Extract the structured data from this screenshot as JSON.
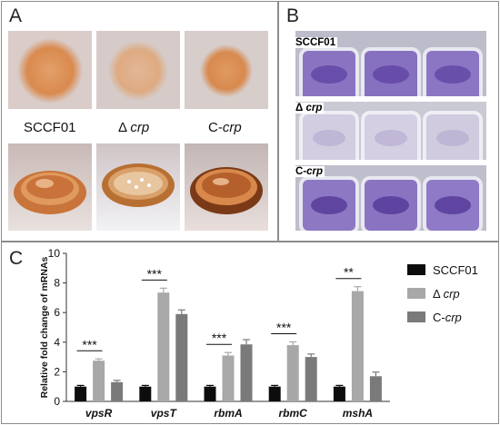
{
  "panel_a": {
    "label": "A",
    "captions": [
      {
        "pre": "SCCF01",
        "em": ""
      },
      {
        "pre": "Δ ",
        "em": "crp"
      },
      {
        "pre": "C-",
        "em": "crp"
      }
    ]
  },
  "panel_b": {
    "label": "B",
    "rows": [
      {
        "pre": "SCCF01",
        "em": ""
      },
      {
        "pre": "Δ ",
        "em": "crp"
      },
      {
        "pre": "C-",
        "em": "crp"
      }
    ]
  },
  "panel_c": {
    "label": "C"
  },
  "chart_data": {
    "type": "bar",
    "ylabel": "Relative fold change of mRNAs",
    "xlabel": "",
    "ylim": [
      0,
      10
    ],
    "yticks": [
      0,
      2,
      4,
      6,
      8,
      10
    ],
    "grid": false,
    "legend_position": "right",
    "categories": [
      "vpsR",
      "vpsT",
      "rbmA",
      "rbmC",
      "mshA"
    ],
    "series": [
      {
        "name": "SCCF01",
        "legend_pre": "SCCF01",
        "legend_em": "",
        "color": "#0d0d0d",
        "values": [
          1.0,
          1.0,
          1.0,
          1.0,
          1.0
        ],
        "errors": [
          0.08,
          0.08,
          0.08,
          0.08,
          0.08
        ]
      },
      {
        "name": "Δ crp",
        "legend_pre": "Δ ",
        "legend_em": "crp",
        "color": "#a8a8a8",
        "values": [
          2.75,
          7.35,
          3.1,
          3.8,
          7.45
        ],
        "errors": [
          0.12,
          0.3,
          0.2,
          0.22,
          0.3
        ]
      },
      {
        "name": "C-crp",
        "legend_pre": "C-",
        "legend_em": "crp",
        "color": "#7a7a7a",
        "values": [
          1.3,
          5.9,
          3.85,
          3.0,
          1.7
        ],
        "errors": [
          0.12,
          0.28,
          0.32,
          0.2,
          0.28
        ]
      }
    ],
    "significance": [
      {
        "category": "vpsR",
        "label": "***"
      },
      {
        "category": "vpsT",
        "label": "***"
      },
      {
        "category": "rbmA",
        "label": "***"
      },
      {
        "category": "rbmC",
        "label": "***"
      },
      {
        "category": "mshA",
        "label": "**"
      }
    ]
  }
}
